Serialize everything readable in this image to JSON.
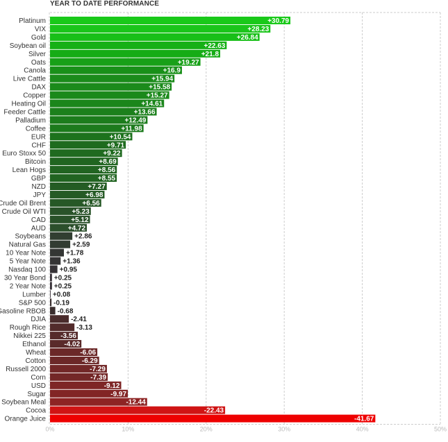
{
  "chart_data": {
    "type": "bar",
    "orientation": "horizontal",
    "title": "YEAR TO DATE PERFORMANCE",
    "categories": [
      "Platinum",
      "VIX",
      "Gold",
      "Soybean oil",
      "Silver",
      "Oats",
      "Canola",
      "Live Cattle",
      "DAX",
      "Copper",
      "Heating Oil",
      "Feeder Cattle",
      "Palladium",
      "Coffee",
      "EUR",
      "CHF",
      "Euro Stoxx 50",
      "Bitcoin",
      "Lean Hogs",
      "GBP",
      "NZD",
      "JPY",
      "Crude Oil Brent",
      "Crude Oil WTI",
      "CAD",
      "AUD",
      "Soybeans",
      "Natural Gas",
      "10 Year Note",
      "5 Year Note",
      "Nasdaq 100",
      "30 Year Bond",
      "2 Year Note",
      "Lumber",
      "S&P 500",
      "Gasoline RBOB",
      "DJIA",
      "Rough Rice",
      "Nikkei 225",
      "Ethanol",
      "Wheat",
      "Cotton",
      "Russell 2000",
      "Corn",
      "USD",
      "Sugar",
      "Soybean Meal",
      "Cocoa",
      "Orange Juice"
    ],
    "values": [
      30.79,
      28.23,
      26.84,
      22.63,
      21.8,
      19.27,
      16.9,
      15.94,
      15.58,
      15.27,
      14.61,
      13.66,
      12.49,
      11.98,
      10.54,
      9.71,
      9.22,
      8.69,
      8.56,
      8.55,
      7.27,
      6.98,
      6.56,
      5.23,
      5.12,
      4.72,
      2.86,
      2.59,
      1.78,
      1.36,
      0.95,
      0.25,
      0.25,
      0.08,
      -0.19,
      -0.68,
      -2.41,
      -3.13,
      -3.56,
      -4.02,
      -6.06,
      -6.29,
      -7.29,
      -7.39,
      -9.12,
      -9.97,
      -12.44,
      -22.43,
      -41.67
    ],
    "value_labels": [
      "+30.79",
      "+28.23",
      "+26.84",
      "+22.63",
      "+21.8",
      "+19.27",
      "+16.9",
      "+15.94",
      "+15.58",
      "+15.27",
      "+14.61",
      "+13.66",
      "+12.49",
      "+11.98",
      "+10.54",
      "+9.71",
      "+9.22",
      "+8.69",
      "+8.56",
      "+8.55",
      "+7.27",
      "+6.98",
      "+6.56",
      "+5.23",
      "+5.12",
      "+4.72",
      "+2.86",
      "+2.59",
      "+1.78",
      "+1.36",
      "+0.95",
      "+0.25",
      "+0.25",
      "+0.08",
      "-0.19",
      "-0.68",
      "-2.41",
      "-3.13",
      "-3.56",
      "-4.02",
      "-6.06",
      "-6.29",
      "-7.29",
      "-7.39",
      "-9.12",
      "-9.97",
      "-12.44",
      "-22.43",
      "-41.67"
    ],
    "bar_colors": [
      "#19c919",
      "#1ac51a",
      "#18bf18",
      "#16b016",
      "#16ac16",
      "#18a018",
      "#199019",
      "#1b8b1b",
      "#1b8a1b",
      "#1b891b",
      "#1b861b",
      "#1c801c",
      "#1c7c1c",
      "#1c7a1c",
      "#1d721d",
      "#1e6b1e",
      "#1f6a1f",
      "#206520",
      "#216421",
      "#216421",
      "#245c24",
      "#255a25",
      "#265826",
      "#295229",
      "#295129",
      "#2b4f2b",
      "#313e31",
      "#323c32",
      "#343634",
      "#353435",
      "#363236",
      "#373037",
      "#373037",
      "#382f38",
      "#392e2e",
      "#3a2d2d",
      "#4a2c2c",
      "#522b2b",
      "#552b2b",
      "#5a2a2a",
      "#6b2828",
      "#6c2828",
      "#722727",
      "#732727",
      "#7e2626",
      "#822525",
      "#8e2424",
      "#d01414",
      "#ee0000"
    ],
    "xlim": [
      0,
      50
    ],
    "xticks": [
      "0%",
      "10%",
      "20%",
      "30%",
      "40%",
      "50%"
    ],
    "grid": true,
    "value_encoding": "absolute percent change; bar length is the magnitude, sign shown in labels"
  }
}
